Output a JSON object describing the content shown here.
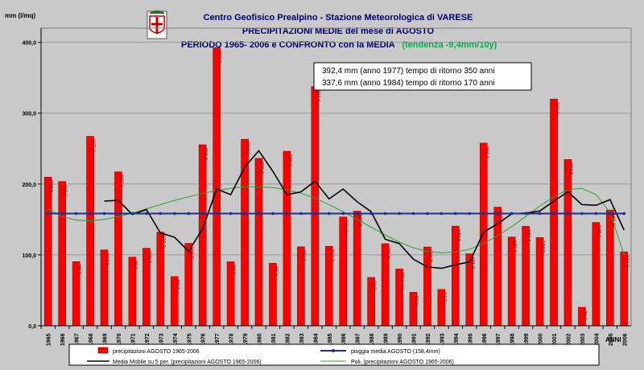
{
  "chart_data": {
    "type": "bar",
    "title": {
      "line1": "Centro Geofisico Prealpino - Stazione Meteorologica di VARESE",
      "line2": "PRECIPITAZIONI MEDIE del mese di AGOSTO",
      "line3": "PERIODO 1965- 2006 e CONFRONTO con la MEDIA",
      "trend": "(tendenza -9,4mm/10y)"
    },
    "ylabel": "mm (l/mq)",
    "xlabel": "ANNI",
    "ylim": [
      0,
      420
    ],
    "yticks": [
      "0,0",
      "100,0",
      "200,0",
      "300,0",
      "400,0"
    ],
    "grid": true,
    "annotations": [
      "392,4 mm  (anno 1977)  tempo di ritorno 350 anni",
      "337,6 mm  (anno 1984)  tempo di ritorno 170 anni"
    ],
    "categories": [
      "1965",
      "1966",
      "1967",
      "1968",
      "1969",
      "1970",
      "1971",
      "1972",
      "1973",
      "1974",
      "1975",
      "1976",
      "1977",
      "1978",
      "1979",
      "1980",
      "1981",
      "1982",
      "1983",
      "1984",
      "1985",
      "1986",
      "1987",
      "1988",
      "1989",
      "1990",
      "1991",
      "1992",
      "1993",
      "1994",
      "1995",
      "1996",
      "1997",
      "1998",
      "1999",
      "2000",
      "2001",
      "2002",
      "2003",
      "2004",
      "2005",
      "2006"
    ],
    "series": [
      {
        "name": "precipitazioni AGOSTO 1965-2006",
        "kind": "bar",
        "color": "#ff0000",
        "values": [
          209.8,
          203.6,
          90.5,
          267.3,
          107.0,
          217.2,
          96.8,
          109.5,
          132.2,
          69.4,
          116.3,
          255.4,
          392.4,
          90.3,
          263.2,
          236.2,
          88.3,
          246.3,
          111.4,
          337.6,
          112.2,
          153.5,
          161.8,
          68.2,
          115.8,
          80.1,
          47.3,
          111.2,
          51.2,
          140.6,
          101.6,
          257.8,
          167.4,
          125.3,
          140.4,
          124.5,
          320.0,
          234.6,
          26.1,
          145.8,
          163.3,
          104.4
        ]
      },
      {
        "name": "pioggia media AGOSTO (158,4mm)",
        "kind": "mean",
        "color": "#1f2f8f",
        "value": 158.4
      },
      {
        "name": "Media Mobile su 5 per. (precipitazioni AGOSTO 1965-2006)",
        "kind": "line",
        "color": "#000000",
        "values": [
          null,
          null,
          null,
          null,
          176,
          177,
          157,
          164,
          131,
          125,
          105,
          137,
          193,
          185,
          224,
          247,
          218,
          185,
          189,
          204,
          179,
          193,
          175,
          161,
          122,
          116,
          94,
          83,
          81,
          86,
          90,
          132,
          144,
          158,
          159,
          162,
          176,
          189,
          171,
          170,
          178,
          135
        ]
      },
      {
        "name": "Poli. (precipitazioni AGOSTO 1965-2006)",
        "kind": "line",
        "color": "#2e9e2e",
        "values": [
          165,
          154,
          149,
          148,
          150,
          154,
          159,
          165,
          171,
          177,
          182,
          187,
          191,
          194,
          196,
          196,
          195,
          192,
          187,
          180,
          171,
          161,
          150,
          139,
          128,
          118,
          110,
          105,
          103,
          104,
          108,
          116,
          127,
          140,
          154,
          169,
          182,
          192,
          194,
          185,
          160,
          100
        ]
      }
    ]
  }
}
